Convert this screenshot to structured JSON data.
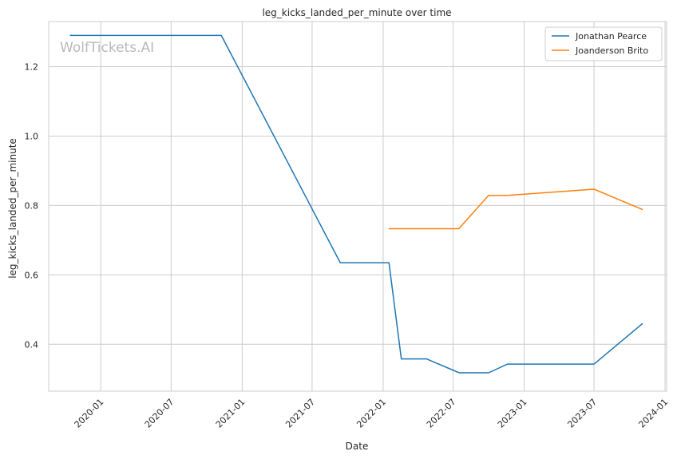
{
  "chart_data": {
    "type": "line",
    "title": "leg_kicks_landed_per_minute over time",
    "xlabel": "Date",
    "ylabel": "leg_kicks_landed_per_minute",
    "watermark": "WolfTickets.AI",
    "x_ticks": [
      "2020-01",
      "2020-07",
      "2021-01",
      "2021-07",
      "2022-01",
      "2022-07",
      "2023-01",
      "2023-07",
      "2024-01"
    ],
    "y_ticks": [
      "0.4",
      "0.6",
      "0.8",
      "1.0",
      "1.2"
    ],
    "xlim": [
      "2019-08-19",
      "2024-01-05"
    ],
    "ylim": [
      0.265,
      1.33
    ],
    "grid": true,
    "legend_position": "top-right",
    "series": [
      {
        "name": "Jonathan Pearce",
        "color": "#1f77b4",
        "points": [
          {
            "x": "2019-10-13",
            "y": 1.29
          },
          {
            "x": "2020-11-08",
            "y": 1.29
          },
          {
            "x": "2021-09-12",
            "y": 0.635
          },
          {
            "x": "2022-01-16",
            "y": 0.635
          },
          {
            "x": "2022-02-17",
            "y": 0.358
          },
          {
            "x": "2022-04-23",
            "y": 0.358
          },
          {
            "x": "2022-07-17",
            "y": 0.318
          },
          {
            "x": "2022-10-01",
            "y": 0.318
          },
          {
            "x": "2022-11-19",
            "y": 0.343
          },
          {
            "x": "2023-07-01",
            "y": 0.343
          },
          {
            "x": "2023-11-04",
            "y": 0.46
          }
        ]
      },
      {
        "name": "Joanderson Brito",
        "color": "#ff7f0e",
        "points": [
          {
            "x": "2022-01-15",
            "y": 0.733
          },
          {
            "x": "2022-07-16",
            "y": 0.733
          },
          {
            "x": "2022-10-01",
            "y": 0.829
          },
          {
            "x": "2022-11-19",
            "y": 0.829
          },
          {
            "x": "2023-07-01",
            "y": 0.847
          },
          {
            "x": "2023-11-04",
            "y": 0.788
          }
        ]
      }
    ]
  }
}
